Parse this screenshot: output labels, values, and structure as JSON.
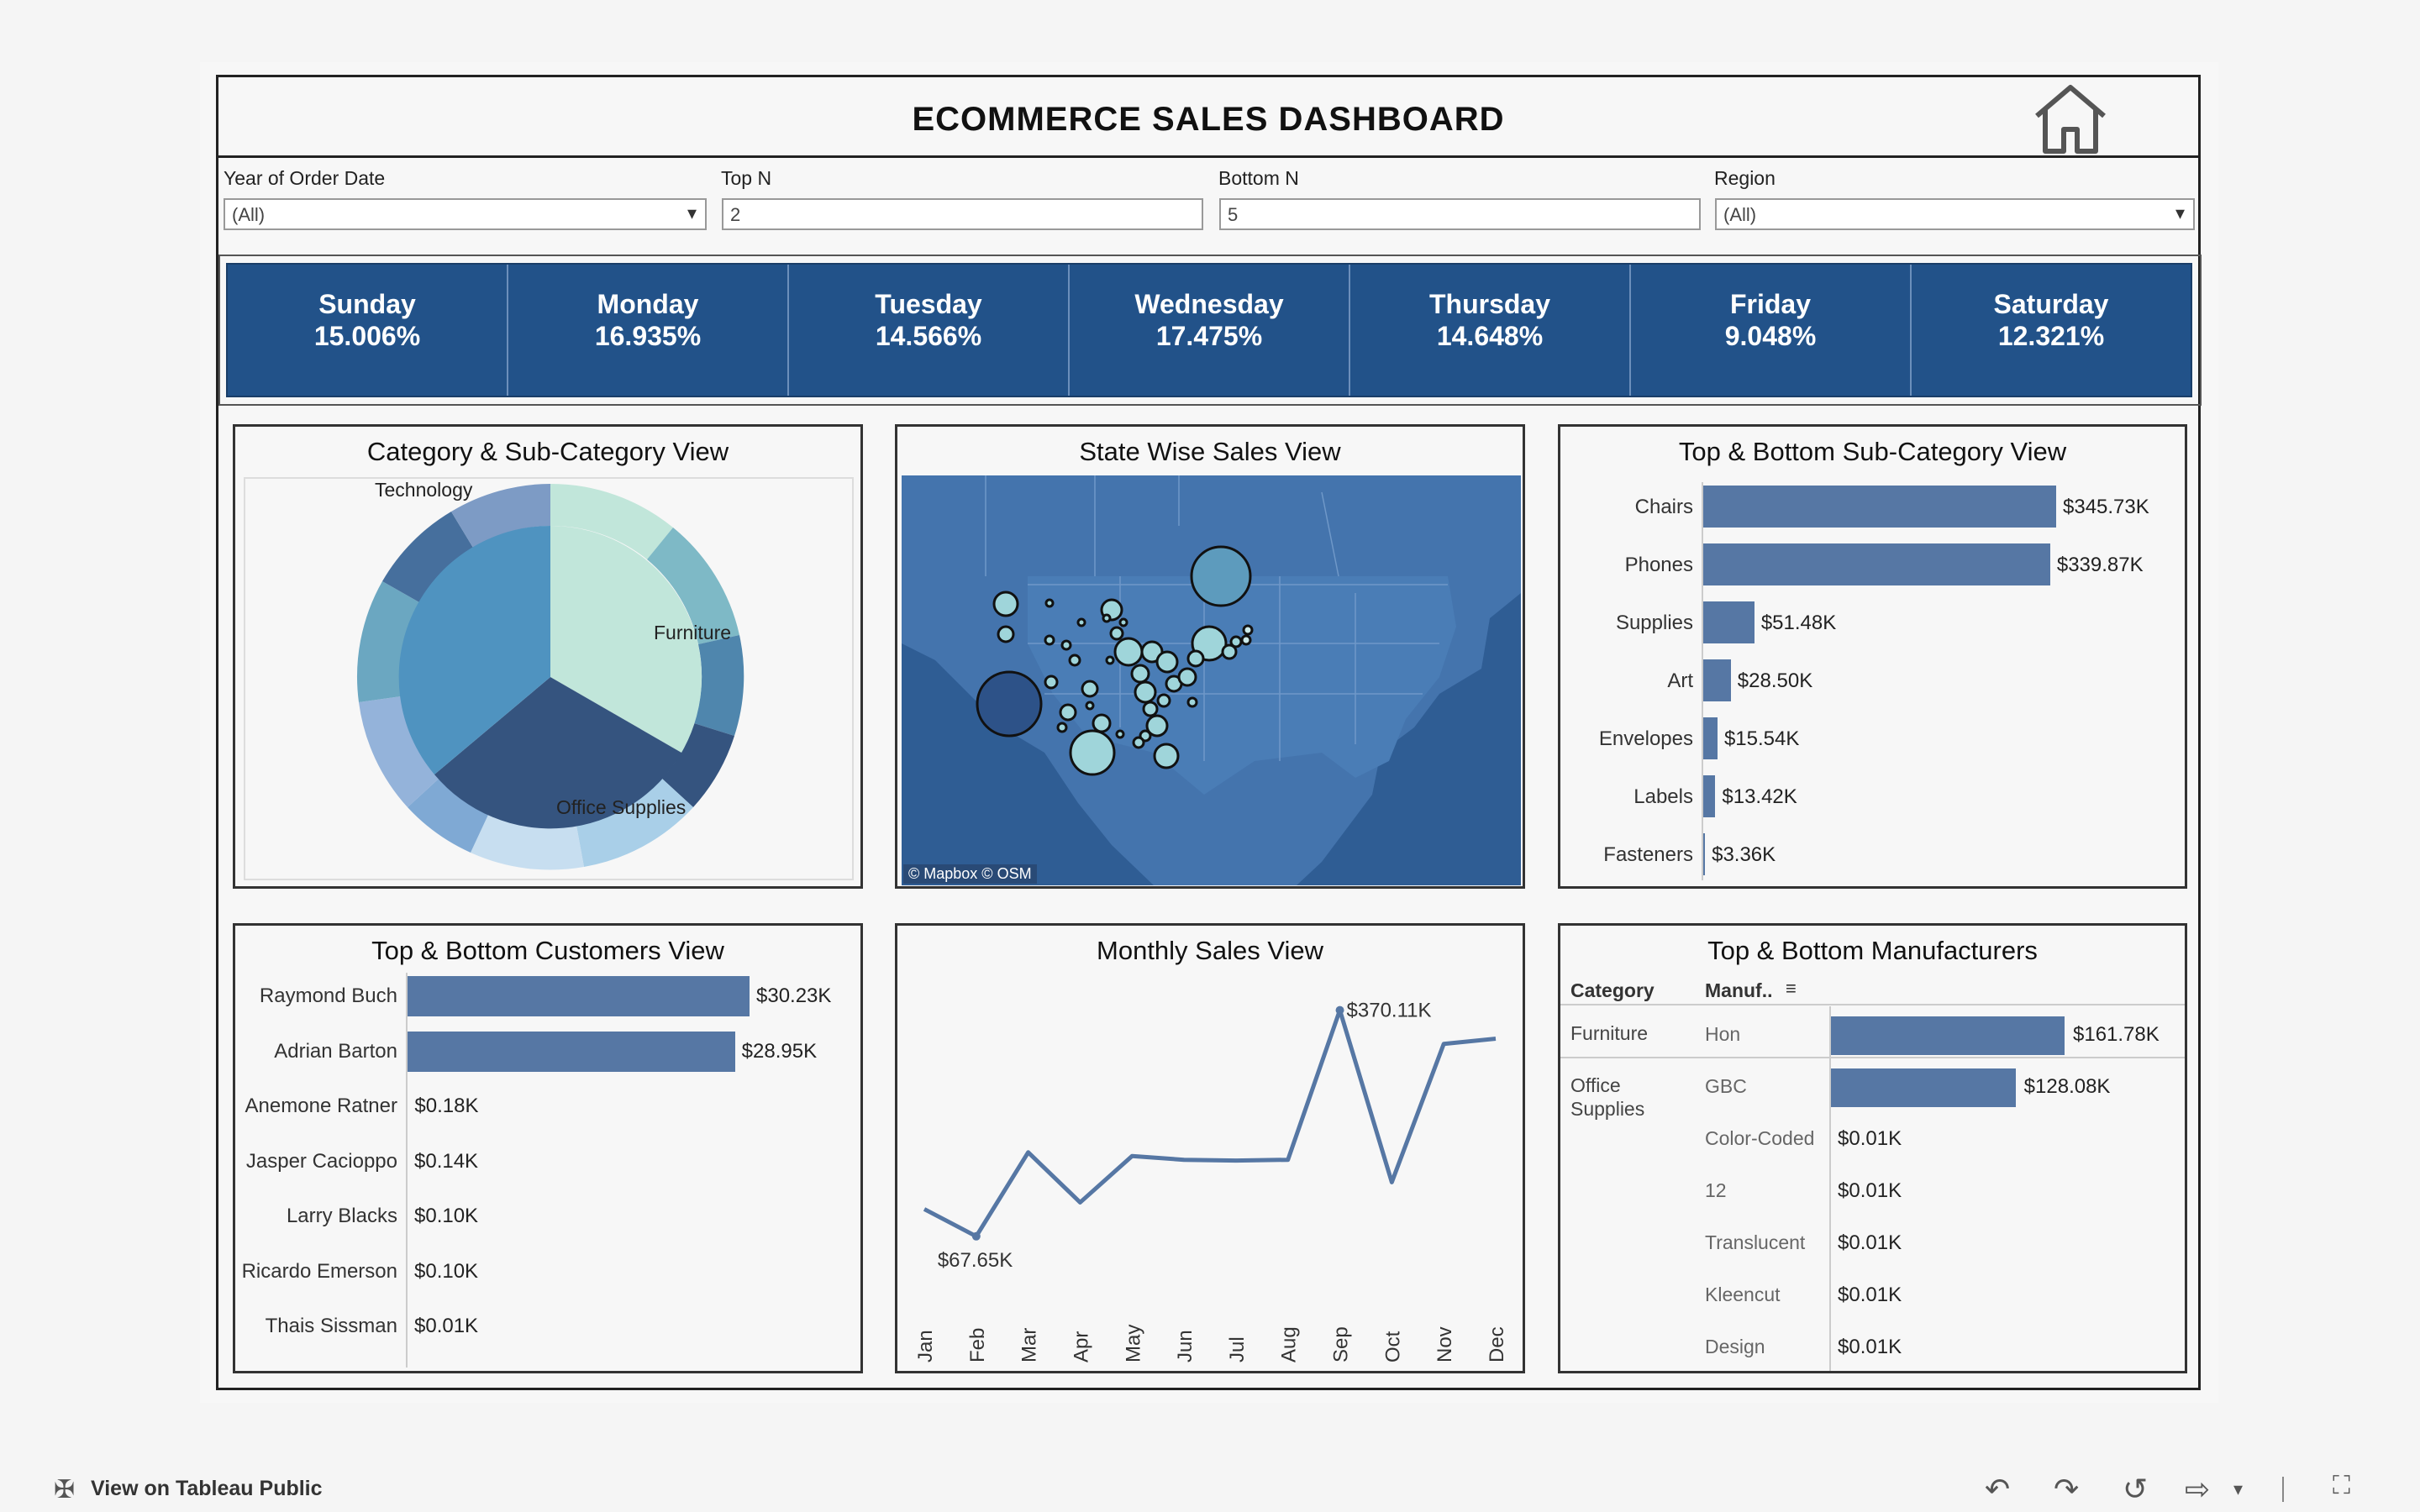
{
  "title": "ECOMMERCE SALES DASHBOARD",
  "filters": {
    "year_label": "Year of Order Date",
    "year_value": "(All)",
    "topn_label": "Top N",
    "topn_value": "2",
    "bottomn_label": "Bottom N",
    "bottomn_value": "5",
    "region_label": "Region",
    "region_value": "(All)"
  },
  "days": [
    {
      "name": "Sunday",
      "pct": "15.006%"
    },
    {
      "name": "Monday",
      "pct": "16.935%"
    },
    {
      "name": "Tuesday",
      "pct": "14.566%"
    },
    {
      "name": "Wednesday",
      "pct": "17.475%"
    },
    {
      "name": "Thursday",
      "pct": "14.648%"
    },
    {
      "name": "Friday",
      "pct": "9.048%"
    },
    {
      "name": "Saturday",
      "pct": "12.321%"
    }
  ],
  "panels": {
    "category": "Category & Sub-Category View",
    "state": "State Wise Sales View",
    "subcat": "Top & Bottom Sub-Category View",
    "customers": "Top & Bottom Customers View",
    "monthly": "Monthly Sales View",
    "manufacturers": "Top & Bottom Manufacturers"
  },
  "pie": {
    "labels": {
      "technology": "Technology",
      "furniture": "Furniture",
      "office": "Office Supplies"
    },
    "colors": {
      "furniture": "#c1e6da",
      "office": "#35547f",
      "technology": "#4f93c0"
    }
  },
  "map": {
    "attribution": "© Mapbox  © OSM"
  },
  "subcategories": {
    "max": 345.73,
    "rows": [
      {
        "label": "Chairs",
        "value": 345.73,
        "text": "$345.73K"
      },
      {
        "label": "Phones",
        "value": 339.87,
        "text": "$339.87K"
      },
      {
        "label": "Supplies",
        "value": 51.48,
        "text": "$51.48K"
      },
      {
        "label": "Art",
        "value": 28.5,
        "text": "$28.50K"
      },
      {
        "label": "Envelopes",
        "value": 15.54,
        "text": "$15.54K"
      },
      {
        "label": "Labels",
        "value": 13.42,
        "text": "$13.42K"
      },
      {
        "label": "Fasteners",
        "value": 3.36,
        "text": "$3.36K"
      }
    ]
  },
  "customers": {
    "max": 30.23,
    "rows": [
      {
        "label": "Raymond Buch",
        "value": 30.23,
        "text": "$30.23K"
      },
      {
        "label": "Adrian Barton",
        "value": 28.95,
        "text": "$28.95K"
      },
      {
        "label": "Anemone Ratner",
        "value": 0.18,
        "text": "$0.18K"
      },
      {
        "label": "Jasper Cacioppo",
        "value": 0.14,
        "text": "$0.14K"
      },
      {
        "label": "Larry Blacks",
        "value": 0.1,
        "text": "$0.10K"
      },
      {
        "label": "Ricardo Emerson",
        "value": 0.1,
        "text": "$0.10K"
      },
      {
        "label": "Thais Sissman",
        "value": 0.01,
        "text": "$0.01K"
      }
    ]
  },
  "chart_data": {
    "type": "line",
    "x": [
      "Jan",
      "Feb",
      "Mar",
      "Apr",
      "May",
      "Jun",
      "Jul",
      "Aug",
      "Sep",
      "Oct",
      "Nov",
      "Dec"
    ],
    "values": [
      104,
      67.65,
      180,
      113,
      175,
      170,
      169,
      170,
      370.11,
      140,
      325,
      332
    ],
    "annotations": {
      "min": "$67.65K",
      "max": "$370.11K"
    },
    "ylim": [
      0,
      400
    ]
  },
  "manufacturers": {
    "col_category": "Category",
    "col_manuf": "Manuf..",
    "max": 161.78,
    "rows": [
      {
        "category": "Furniture",
        "name": "Hon",
        "value": 161.78,
        "text": "$161.78K"
      },
      {
        "category": "Office\nSupplies",
        "name": "GBC",
        "value": 128.08,
        "text": "$128.08K"
      },
      {
        "category": "",
        "name": "Color-Coded",
        "value": 0.01,
        "text": "$0.01K"
      },
      {
        "category": "",
        "name": "12",
        "value": 0.01,
        "text": "$0.01K"
      },
      {
        "category": "",
        "name": "Translucent",
        "value": 0.01,
        "text": "$0.01K"
      },
      {
        "category": "",
        "name": "Kleencut",
        "value": 0.01,
        "text": "$0.01K"
      },
      {
        "category": "",
        "name": "Design",
        "value": 0.01,
        "text": "$0.01K"
      }
    ]
  },
  "footer": {
    "view_on": "View on Tableau Public"
  },
  "colors": {
    "accent": "#225289",
    "bar": "#5677a4"
  }
}
